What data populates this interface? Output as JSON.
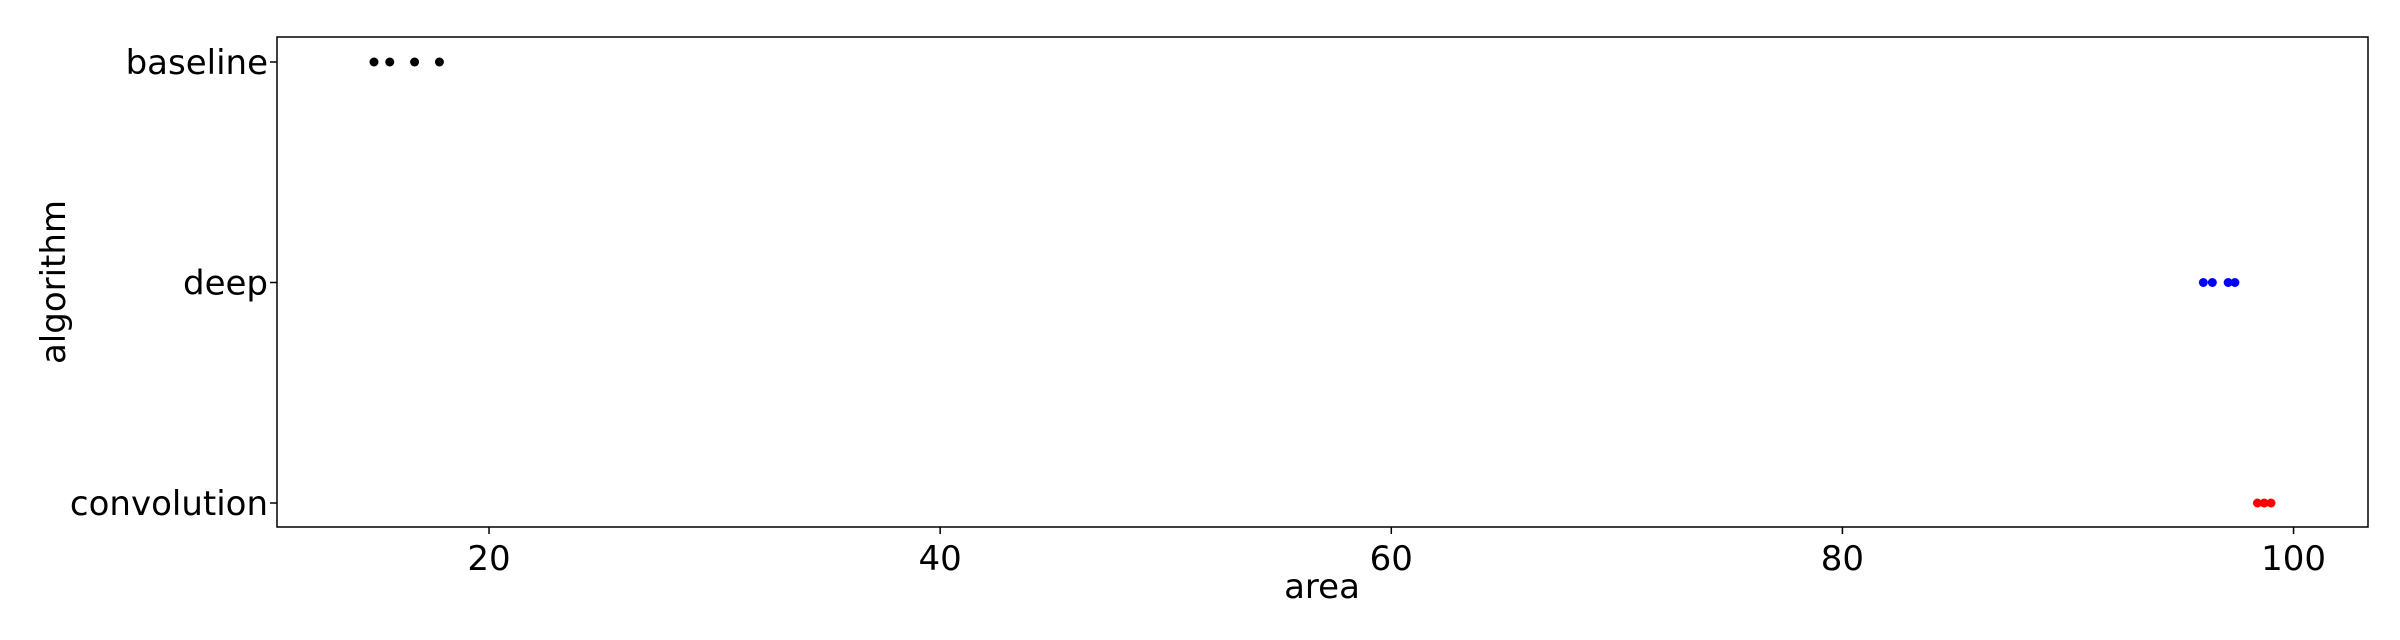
{
  "chart_data": {
    "type": "scatter",
    "title": "",
    "xlabel": "area",
    "ylabel": "algorithm",
    "xlim": [
      10.6,
      103.3
    ],
    "x_ticks": [
      20,
      40,
      60,
      80,
      100
    ],
    "categories": [
      "baseline",
      "deep",
      "convolution"
    ],
    "grid": false,
    "legend": "none",
    "series": [
      {
        "category": "baseline",
        "color": "#000000",
        "x": [
          14.9,
          15.6,
          16.7,
          17.8
        ]
      },
      {
        "category": "deep",
        "color": "#0000ff",
        "x": [
          96.0,
          96.4,
          97.1,
          97.4
        ]
      },
      {
        "category": "convolution",
        "color": "#ff0000",
        "x": [
          98.4,
          98.7,
          99.0
        ]
      }
    ]
  }
}
